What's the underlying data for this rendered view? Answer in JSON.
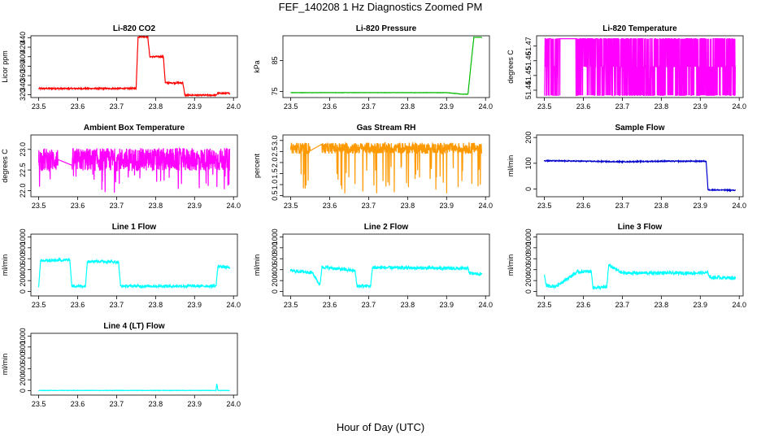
{
  "figure": {
    "title": "FEF_140208  1 Hz Diagnostics Zoomed PM",
    "xlabel": "Hour of Day (UTC)"
  },
  "chart_data": [
    {
      "id": "p1",
      "type": "line",
      "title": "Li-820 CO2",
      "ylabel": "Licor ppm",
      "color": "#ff0000",
      "xlim": [
        23.48,
        24.01
      ],
      "ylim": [
        314,
        444
      ],
      "xticks": [
        23.5,
        23.6,
        23.7,
        23.8,
        23.9,
        24.0
      ],
      "yticks": [
        320,
        340,
        360,
        380,
        400,
        420,
        440
      ],
      "x": [
        23.5,
        23.6,
        23.75,
        23.755,
        23.78,
        23.785,
        23.82,
        23.825,
        23.87,
        23.875,
        23.955,
        23.96,
        23.99
      ],
      "y": [
        333,
        333,
        333,
        442,
        442,
        400,
        400,
        345,
        345,
        319,
        319,
        323,
        323
      ],
      "noise": 1.5
    },
    {
      "id": "p2",
      "type": "line",
      "title": "Li-820 Pressure",
      "ylabel": "kPa",
      "color": "#00bb00",
      "xlim": [
        23.48,
        24.01
      ],
      "ylim": [
        73,
        93
      ],
      "xticks": [
        23.5,
        23.6,
        23.7,
        23.8,
        23.9,
        24.0
      ],
      "yticks": [
        75,
        85
      ],
      "yticklabels": [
        "75",
        "85"
      ],
      "x": [
        23.5,
        23.9,
        23.94,
        23.955,
        23.962,
        23.97,
        23.99
      ],
      "y": [
        74.6,
        74.6,
        74.1,
        74.1,
        83,
        92.5,
        92.5
      ],
      "noise": 0.05
    },
    {
      "id": "p3",
      "type": "line",
      "title": "Li-820 Temperature",
      "ylabel": "degrees C",
      "color": "#ff00ff",
      "xlim": [
        23.48,
        24.01
      ],
      "ylim": [
        51.435,
        51.477
      ],
      "xticks": [
        23.5,
        23.6,
        23.7,
        23.8,
        23.9,
        24.0
      ],
      "yticks": [
        51.44,
        51.45,
        51.46,
        51.47
      ],
      "yticklabels": [
        "51.44",
        "51.45",
        "51.46",
        "51.47"
      ],
      "levels": [
        51.4365,
        51.456,
        51.475
      ],
      "gap": [
        23.54,
        23.58
      ],
      "x": [
        23.54,
        23.58
      ],
      "y": [
        51.475,
        51.4365
      ]
    },
    {
      "id": "p4",
      "type": "line",
      "title": "Ambient Box Temperature",
      "ylabel": "degrees C",
      "color": "#ff00ff",
      "xlim": [
        23.48,
        24.01
      ],
      "ylim": [
        21.85,
        23.35
      ],
      "xticks": [
        23.5,
        23.6,
        23.7,
        23.8,
        23.9,
        24.0
      ],
      "yticks": [
        22.0,
        22.5,
        23.0
      ],
      "yticklabels": [
        "22.0",
        "22.5",
        "23.0"
      ],
      "center": 22.75,
      "amp": 0.28,
      "spike_low": 21.9,
      "gap": [
        23.55,
        23.585
      ],
      "x": [
        23.5,
        23.99
      ],
      "y": [
        22.75,
        22.75
      ]
    },
    {
      "id": "p5",
      "type": "line",
      "title": "Gas Stream RH",
      "ylabel": "percent",
      "color": "#ff9900",
      "xlim": [
        23.48,
        24.01
      ],
      "ylim": [
        0.45,
        3.25
      ],
      "xticks": [
        23.5,
        23.6,
        23.7,
        23.8,
        23.9,
        24.0
      ],
      "yticks": [
        0.5,
        1.0,
        1.5,
        2.0,
        2.5,
        3.0
      ],
      "yticklabels": [
        "0.5",
        "1.0",
        "1.5",
        "2.0",
        "2.5",
        "3.0"
      ],
      "center": 2.65,
      "amp": 0.25,
      "spike_low": 0.6,
      "gap": [
        23.55,
        23.58
      ],
      "x": [
        23.5,
        23.99
      ],
      "y": [
        2.65,
        2.65
      ]
    },
    {
      "id": "p6",
      "type": "line",
      "title": "Sample Flow",
      "ylabel": "ml/min",
      "color": "#0000cc",
      "xlim": [
        23.48,
        24.01
      ],
      "ylim": [
        -30,
        210
      ],
      "xticks": [
        23.5,
        23.6,
        23.7,
        23.8,
        23.9,
        24.0
      ],
      "yticks": [
        0,
        100,
        200
      ],
      "yticklabels": [
        "0",
        "100",
        "200"
      ],
      "x": [
        23.5,
        23.6,
        23.7,
        23.8,
        23.915,
        23.92,
        23.99
      ],
      "y": [
        110,
        108,
        106,
        108,
        108,
        -3,
        -5
      ],
      "noise": 2
    },
    {
      "id": "p7",
      "type": "line",
      "title": "Line 1 Flow",
      "ylabel": "ml/min",
      "color": "#00ffff",
      "xlim": [
        23.48,
        24.01
      ],
      "ylim": [
        -80,
        1050
      ],
      "xticks": [
        23.5,
        23.6,
        23.7,
        23.8,
        23.9,
        24.0
      ],
      "yticks": [
        0,
        200,
        400,
        600,
        800,
        1000
      ],
      "yticklabels": [
        "0",
        "200",
        "400",
        "600",
        "800",
        "1000"
      ],
      "x": [
        23.5,
        23.505,
        23.58,
        23.585,
        23.62,
        23.625,
        23.705,
        23.71,
        23.955,
        23.96,
        23.99
      ],
      "y": [
        100,
        560,
        580,
        100,
        100,
        560,
        540,
        100,
        100,
        460,
        440
      ],
      "noise": 25
    },
    {
      "id": "p8",
      "type": "line",
      "title": "Line 2 Flow",
      "ylabel": "ml/min",
      "color": "#00ffff",
      "xlim": [
        23.48,
        24.01
      ],
      "ylim": [
        -80,
        1050
      ],
      "xticks": [
        23.5,
        23.6,
        23.7,
        23.8,
        23.9,
        24.0
      ],
      "yticks": [
        0,
        200,
        400,
        600,
        800,
        1000
      ],
      "yticklabels": [
        "0",
        "200",
        "400",
        "600",
        "800",
        "1000"
      ],
      "x": [
        23.5,
        23.555,
        23.575,
        23.58,
        23.665,
        23.67,
        23.705,
        23.71,
        23.955,
        23.96,
        23.99
      ],
      "y": [
        380,
        350,
        120,
        450,
        380,
        100,
        100,
        440,
        420,
        330,
        320
      ],
      "noise": 30
    },
    {
      "id": "p9",
      "type": "line",
      "title": "Line 3 Flow",
      "ylabel": "ml/min",
      "color": "#00ffff",
      "xlim": [
        23.48,
        24.01
      ],
      "ylim": [
        -80,
        1050
      ],
      "xticks": [
        23.5,
        23.6,
        23.7,
        23.8,
        23.9,
        24.0
      ],
      "yticks": [
        0,
        200,
        400,
        600,
        800,
        1000
      ],
      "yticklabels": [
        "0",
        "200",
        "400",
        "600",
        "800",
        "1000"
      ],
      "x": [
        23.5,
        23.505,
        23.53,
        23.585,
        23.62,
        23.625,
        23.66,
        23.665,
        23.7,
        23.92,
        23.925,
        23.99
      ],
      "y": [
        310,
        100,
        100,
        360,
        370,
        70,
        80,
        480,
        340,
        340,
        260,
        250
      ],
      "noise": 30
    },
    {
      "id": "p10",
      "type": "line",
      "title": "Line 4 (LT) Flow",
      "ylabel": "ml/min",
      "color": "#00ffff",
      "xlim": [
        23.48,
        24.01
      ],
      "ylim": [
        -80,
        1050
      ],
      "xticks": [
        23.5,
        23.6,
        23.7,
        23.8,
        23.9,
        24.0
      ],
      "yticks": [
        0,
        200,
        400,
        600,
        800,
        1000
      ],
      "yticklabels": [
        "0",
        "200",
        "400",
        "600",
        "800",
        "1000"
      ],
      "x": [
        23.5,
        23.955,
        23.957,
        23.96,
        23.99
      ],
      "y": [
        5,
        5,
        130,
        5,
        5
      ],
      "noise": 3
    }
  ]
}
